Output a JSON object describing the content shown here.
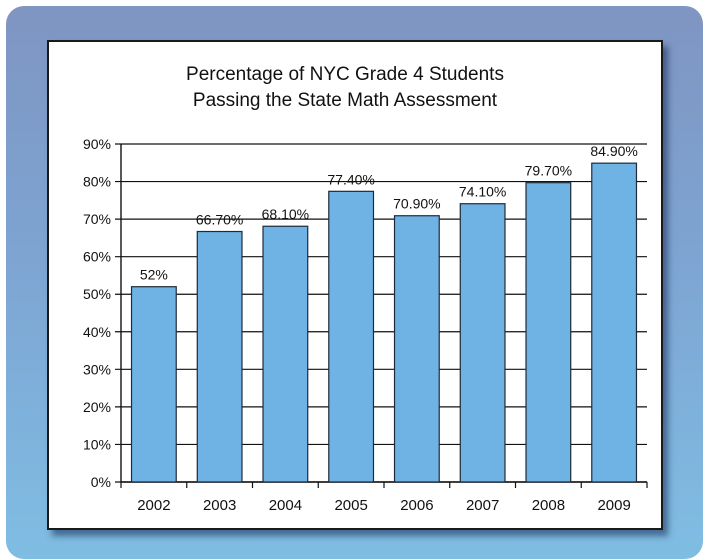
{
  "colors": {
    "bar": "#6fb2e4",
    "bar_stroke": "#1e2a38",
    "plot_bg": "#ffffff",
    "grid": "#111111",
    "frame_top": "#7f95c2",
    "frame_bottom": "#7fbde3"
  },
  "chart_data": {
    "type": "bar",
    "title_lines": [
      "Percentage of NYC Grade 4 Students",
      "Passing the State Math Assessment"
    ],
    "categories": [
      "2002",
      "2003",
      "2004",
      "2005",
      "2006",
      "2007",
      "2008",
      "2009"
    ],
    "values": [
      52,
      66.7,
      68.1,
      77.4,
      70.9,
      74.1,
      79.7,
      84.9
    ],
    "data_labels": [
      "52%",
      "66.70%",
      "68.10%",
      "77.40%",
      "70.90%",
      "74.10%",
      "79.70%",
      "84.90%"
    ],
    "ylim": [
      0,
      90
    ],
    "yticks": [
      0,
      10,
      20,
      30,
      40,
      50,
      60,
      70,
      80,
      90
    ],
    "ytick_labels": [
      "0%",
      "10%",
      "20%",
      "30%",
      "40%",
      "50%",
      "60%",
      "70%",
      "80%",
      "90%"
    ],
    "grid": true,
    "legend": false
  }
}
